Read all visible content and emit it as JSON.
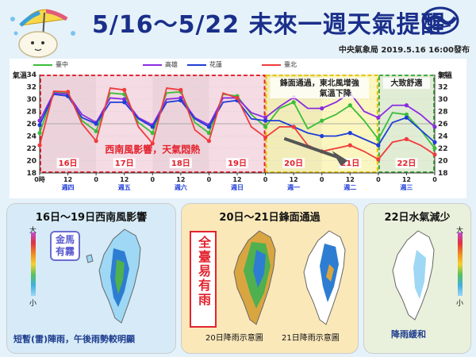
{
  "header": {
    "title": "5/16～5/22 未來一週天氣提醒",
    "publisher": "中央氣象局 2019.5.16 16:00發布"
  },
  "chart_data": {
    "type": "line",
    "ylabel": "氣溫",
    "ylim": [
      18,
      34
    ],
    "yticks": [
      18,
      20,
      22,
      24,
      26,
      28,
      30,
      32,
      34
    ],
    "x_hours": [
      0,
      6,
      12,
      18,
      24,
      30,
      36,
      42,
      48,
      54,
      60,
      66,
      72,
      78,
      84,
      90,
      96,
      102,
      108,
      114,
      120,
      126,
      132,
      138,
      144,
      150,
      156,
      162,
      168
    ],
    "x_tick_labels": [
      "0時",
      "12",
      "0",
      "12",
      "0",
      "12",
      "0",
      "12",
      "0",
      "12",
      "0",
      "12",
      "0",
      "12",
      "0"
    ],
    "x_tick_hours": [
      0,
      12,
      24,
      36,
      48,
      60,
      72,
      84,
      96,
      108,
      120,
      132,
      144,
      156,
      168
    ],
    "weekday_labels": [
      "週四",
      "週五",
      "週六",
      "週日",
      "週一",
      "週二",
      "週三"
    ],
    "day_labels": [
      "16日",
      "17日",
      "18日",
      "19日",
      "20日",
      "21日",
      "22日"
    ],
    "series": [
      {
        "name": "臺中",
        "color": "#3bbd3b",
        "values": [
          24.5,
          31.2,
          31.0,
          26.5,
          24.8,
          31.0,
          30.8,
          26.2,
          24.5,
          31.0,
          31.2,
          26.2,
          24.5,
          30.8,
          30.5,
          27.5,
          25.5,
          28.5,
          29.5,
          25.2,
          26.5,
          27.5,
          29.0,
          26.5,
          23.5,
          27.8,
          27.5,
          25.0,
          22.0
        ]
      },
      {
        "name": "高雄",
        "color": "#8a2be2",
        "values": [
          26.5,
          31.0,
          30.8,
          27.5,
          26.2,
          30.2,
          30.0,
          27.0,
          25.8,
          30.0,
          30.2,
          27.0,
          25.8,
          30.2,
          30.2,
          27.8,
          27.0,
          28.8,
          30.3,
          28.5,
          28.5,
          29.5,
          31.0,
          28.0,
          27.0,
          29.0,
          29.0,
          27.5,
          25.5
        ]
      },
      {
        "name": "花蓮",
        "color": "#1f3dd6",
        "values": [
          25.8,
          30.8,
          30.5,
          27.0,
          26.0,
          29.5,
          29.5,
          26.8,
          25.5,
          29.5,
          29.8,
          26.8,
          25.5,
          29.5,
          29.8,
          26.8,
          26.5,
          26.5,
          25.5,
          24.5,
          24.0,
          24.0,
          24.5,
          23.5,
          22.5,
          26.2,
          27.0,
          25.0,
          23.0
        ]
      },
      {
        "name": "臺北",
        "color": "#f03c3c",
        "values": [
          22.5,
          31.3,
          31.2,
          26.0,
          23.2,
          31.8,
          31.5,
          25.5,
          22.8,
          31.8,
          31.5,
          25.0,
          23.2,
          31.0,
          30.2,
          25.5,
          23.8,
          25.5,
          25.5,
          22.5,
          21.5,
          22.0,
          22.5,
          21.5,
          20.2,
          23.0,
          23.5,
          22.5,
          21.0
        ]
      }
    ],
    "annotations": [
      "鋒面通過，東北風增強",
      "氣溫下降",
      "大致舒適",
      "西南風影響，天氣悶熱"
    ]
  },
  "panels": [
    {
      "title": "16日～19日西南風影響",
      "tag": "金馬有霧",
      "caption": "短暫(雷)陣雨，午後雨勢較明顯"
    },
    {
      "title": "20日～21日鋒面通過",
      "tag": "全臺易有雨",
      "caption_left": "20日降雨示意圖",
      "caption_right": "21日降雨示意圖"
    },
    {
      "title": "22日水氣減少",
      "caption": "降雨緩和"
    }
  ],
  "colorbar_labels": {
    "top": "大",
    "bottom": "小"
  },
  "colors": {
    "title": "#1a2f8a",
    "accent_red": "#e3232e",
    "phase1": "#f5dbe4",
    "phase2": "#fbf6bf",
    "phase3": "#eaf5dc"
  }
}
